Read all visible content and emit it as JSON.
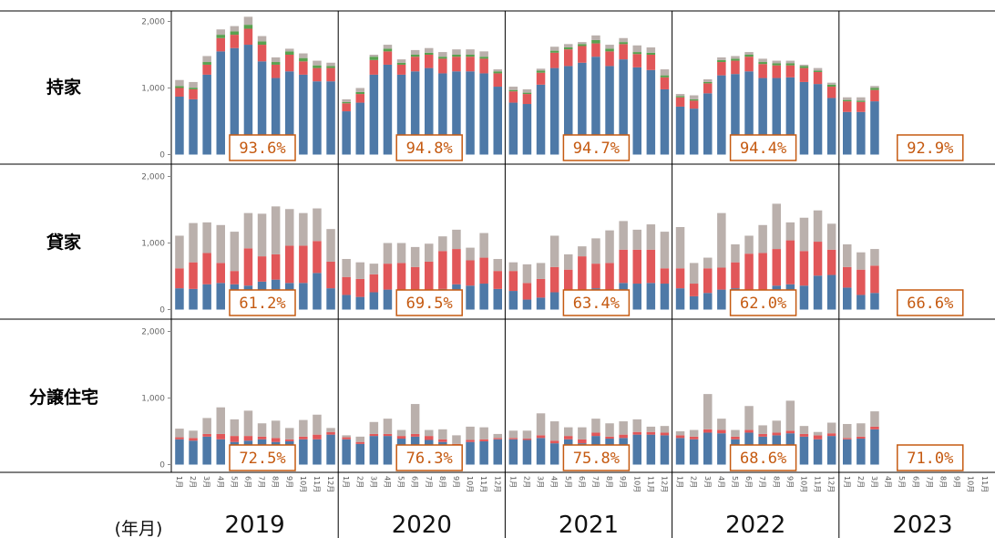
{
  "chart_data": {
    "type": "bar",
    "stacked": true,
    "grid": false,
    "x_unit_label": "(年月)",
    "y_ticks": [
      "0",
      "1,000",
      "2,000"
    ],
    "ylim": [
      0,
      2000
    ],
    "colors": {
      "blue": "#4e79a7",
      "red": "#e15759",
      "green": "#59a14f",
      "gray": "#bab0ac",
      "pct": "#c55a11"
    },
    "years": [
      {
        "year": "2019",
        "months": [
          "1月",
          "2月",
          "3月",
          "4月",
          "5月",
          "6月",
          "7月",
          "8月",
          "9月",
          "10月",
          "11月",
          "12月"
        ]
      },
      {
        "year": "2020",
        "months": [
          "1月",
          "2月",
          "3月",
          "4月",
          "5月",
          "6月",
          "7月",
          "8月",
          "9月",
          "10月",
          "11月",
          "12月"
        ]
      },
      {
        "year": "2021",
        "months": [
          "1月",
          "2月",
          "3月",
          "4月",
          "5月",
          "6月",
          "7月",
          "8月",
          "9月",
          "10月",
          "11月",
          "12月"
        ]
      },
      {
        "year": "2022",
        "months": [
          "1月",
          "2月",
          "3月",
          "4月",
          "5月",
          "6月",
          "7月",
          "8月",
          "9月",
          "10月",
          "11月",
          "12月"
        ]
      },
      {
        "year": "2023",
        "months": [
          "1月",
          "2月",
          "3月",
          "4月",
          "5月",
          "6月",
          "7月",
          "8月",
          "9月",
          "10月",
          "11月",
          "12月"
        ]
      }
    ],
    "rows": [
      {
        "label": "持家",
        "percentages": [
          "93.6%",
          "94.8%",
          "94.7%",
          "94.4%",
          "92.9%"
        ],
        "values": [
          [
            [
              870,
              130,
              30,
              90
            ],
            [
              830,
              150,
              25,
              85
            ],
            [
              1200,
              150,
              40,
              90
            ],
            [
              1550,
              200,
              50,
              80
            ],
            [
              1600,
              200,
              50,
              80
            ],
            [
              1650,
              240,
              60,
              120
            ],
            [
              1400,
              250,
              50,
              80
            ],
            [
              1150,
              200,
              40,
              70
            ],
            [
              1250,
              250,
              50,
              40
            ],
            [
              1200,
              200,
              50,
              70
            ],
            [
              1100,
              200,
              40,
              70
            ],
            [
              1100,
              200,
              30,
              50
            ]
          ],
          [
            [
              650,
              120,
              20,
              40
            ],
            [
              780,
              130,
              30,
              60
            ],
            [
              1200,
              220,
              50,
              30
            ],
            [
              1350,
              200,
              40,
              60
            ],
            [
              1200,
              150,
              30,
              50
            ],
            [
              1250,
              220,
              30,
              70
            ],
            [
              1300,
              200,
              30,
              70
            ],
            [
              1220,
              220,
              30,
              70
            ],
            [
              1250,
              220,
              30,
              80
            ],
            [
              1250,
              220,
              30,
              80
            ],
            [
              1220,
              220,
              30,
              80
            ],
            [
              1020,
              200,
              30,
              30
            ]
          ],
          [
            [
              780,
              170,
              20,
              50
            ],
            [
              760,
              150,
              20,
              50
            ],
            [
              1050,
              180,
              30,
              30
            ],
            [
              1300,
              230,
              30,
              60
            ],
            [
              1330,
              250,
              30,
              50
            ],
            [
              1380,
              250,
              30,
              30
            ],
            [
              1470,
              200,
              50,
              70
            ],
            [
              1330,
              220,
              40,
              60
            ],
            [
              1430,
              230,
              30,
              60
            ],
            [
              1310,
              200,
              30,
              100
            ],
            [
              1270,
              230,
              30,
              80
            ],
            [
              980,
              180,
              30,
              90
            ]
          ],
          [
            [
              720,
              140,
              20,
              30
            ],
            [
              690,
              120,
              20,
              60
            ],
            [
              920,
              150,
              20,
              40
            ],
            [
              1190,
              200,
              30,
              40
            ],
            [
              1210,
              200,
              30,
              40
            ],
            [
              1250,
              220,
              30,
              40
            ],
            [
              1150,
              210,
              30,
              50
            ],
            [
              1150,
              190,
              30,
              40
            ],
            [
              1160,
              180,
              30,
              40
            ],
            [
              1090,
              210,
              30,
              20
            ],
            [
              1060,
              180,
              20,
              40
            ],
            [
              850,
              170,
              30,
              30
            ]
          ],
          [
            [
              640,
              160,
              20,
              40
            ],
            [
              640,
              150,
              20,
              50
            ],
            [
              800,
              170,
              30,
              30
            ]
          ]
        ]
      },
      {
        "label": "貸家",
        "percentages": [
          "61.2%",
          "69.5%",
          "63.4%",
          "62.0%",
          "66.6%"
        ],
        "values": [
          [
            [
              320,
              300,
              0,
              490
            ],
            [
              310,
              400,
              0,
              590
            ],
            [
              380,
              470,
              0,
              460
            ],
            [
              400,
              300,
              0,
              570
            ],
            [
              380,
              200,
              0,
              590
            ],
            [
              360,
              560,
              0,
              530
            ],
            [
              420,
              380,
              0,
              640
            ],
            [
              450,
              380,
              0,
              720
            ],
            [
              400,
              560,
              0,
              550
            ],
            [
              400,
              560,
              0,
              490
            ],
            [
              550,
              480,
              0,
              490
            ],
            [
              320,
              400,
              0,
              490
            ]
          ],
          [
            [
              220,
              270,
              0,
              270
            ],
            [
              190,
              270,
              0,
              250
            ],
            [
              260,
              270,
              0,
              160
            ],
            [
              300,
              390,
              0,
              310
            ],
            [
              300,
              400,
              0,
              300
            ],
            [
              240,
              400,
              0,
              300
            ],
            [
              250,
              470,
              0,
              270
            ],
            [
              310,
              570,
              0,
              220
            ],
            [
              380,
              530,
              0,
              290
            ],
            [
              360,
              380,
              0,
              190
            ],
            [
              390,
              390,
              0,
              370
            ],
            [
              310,
              270,
              0,
              180
            ]
          ],
          [
            [
              280,
              300,
              0,
              130
            ],
            [
              150,
              250,
              0,
              280
            ],
            [
              180,
              280,
              0,
              240
            ],
            [
              260,
              380,
              0,
              470
            ],
            [
              300,
              300,
              0,
              230
            ],
            [
              300,
              500,
              0,
              150
            ],
            [
              320,
              370,
              0,
              380
            ],
            [
              300,
              400,
              0,
              490
            ],
            [
              400,
              500,
              0,
              430
            ],
            [
              390,
              510,
              0,
              300
            ],
            [
              400,
              500,
              0,
              380
            ],
            [
              390,
              230,
              0,
              550
            ]
          ],
          [
            [
              320,
              300,
              0,
              620
            ],
            [
              200,
              190,
              0,
              310
            ],
            [
              250,
              370,
              0,
              160
            ],
            [
              300,
              330,
              0,
              820
            ],
            [
              320,
              390,
              0,
              270
            ],
            [
              290,
              550,
              0,
              270
            ],
            [
              300,
              550,
              0,
              420
            ],
            [
              360,
              550,
              0,
              680
            ],
            [
              380,
              660,
              0,
              270
            ],
            [
              360,
              520,
              0,
              500
            ],
            [
              510,
              510,
              0,
              470
            ],
            [
              520,
              380,
              0,
              390
            ]
          ],
          [
            [
              330,
              310,
              0,
              340
            ],
            [
              220,
              380,
              0,
              260
            ],
            [
              250,
              410,
              0,
              250
            ]
          ]
        ]
      },
      {
        "label": "分譲住宅",
        "percentages": [
          "72.5%",
          "76.3%",
          "75.8%",
          "68.6%",
          "71.0%"
        ],
        "values": [
          [
            [
              380,
              30,
              0,
              130
            ],
            [
              360,
              40,
              0,
              110
            ],
            [
              420,
              40,
              0,
              240
            ],
            [
              380,
              80,
              0,
              400
            ],
            [
              340,
              90,
              0,
              250
            ],
            [
              360,
              70,
              0,
              380
            ],
            [
              380,
              40,
              0,
              200
            ],
            [
              340,
              60,
              0,
              260
            ],
            [
              350,
              30,
              0,
              170
            ],
            [
              380,
              40,
              0,
              250
            ],
            [
              380,
              70,
              0,
              300
            ],
            [
              450,
              40,
              0,
              60
            ]
          ],
          [
            [
              380,
              30,
              0,
              30
            ],
            [
              310,
              30,
              0,
              80
            ],
            [
              430,
              30,
              0,
              180
            ],
            [
              430,
              30,
              0,
              230
            ],
            [
              390,
              40,
              0,
              90
            ],
            [
              420,
              40,
              0,
              450
            ],
            [
              370,
              60,
              0,
              90
            ],
            [
              340,
              40,
              0,
              150
            ],
            [
              280,
              30,
              0,
              130
            ],
            [
              340,
              30,
              0,
              200
            ],
            [
              350,
              30,
              0,
              180
            ],
            [
              380,
              20,
              0,
              60
            ]
          ],
          [
            [
              380,
              20,
              0,
              110
            ],
            [
              370,
              20,
              0,
              120
            ],
            [
              400,
              40,
              0,
              330
            ],
            [
              320,
              40,
              0,
              290
            ],
            [
              380,
              50,
              0,
              130
            ],
            [
              320,
              60,
              0,
              180
            ],
            [
              430,
              50,
              0,
              210
            ],
            [
              390,
              30,
              0,
              200
            ],
            [
              400,
              50,
              0,
              200
            ],
            [
              450,
              40,
              0,
              190
            ],
            [
              450,
              40,
              0,
              80
            ],
            [
              440,
              40,
              0,
              100
            ]
          ],
          [
            [
              400,
              40,
              0,
              60
            ],
            [
              380,
              40,
              0,
              100
            ],
            [
              480,
              50,
              0,
              530
            ],
            [
              470,
              50,
              0,
              170
            ],
            [
              380,
              40,
              0,
              100
            ],
            [
              480,
              40,
              0,
              360
            ],
            [
              420,
              40,
              0,
              130
            ],
            [
              440,
              40,
              0,
              180
            ],
            [
              470,
              40,
              0,
              450
            ],
            [
              420,
              40,
              0,
              120
            ],
            [
              380,
              60,
              0,
              50
            ],
            [
              430,
              40,
              0,
              160
            ]
          ],
          [
            [
              380,
              20,
              0,
              210
            ],
            [
              390,
              30,
              0,
              200
            ],
            [
              530,
              40,
              0,
              230
            ]
          ]
        ]
      }
    ]
  }
}
